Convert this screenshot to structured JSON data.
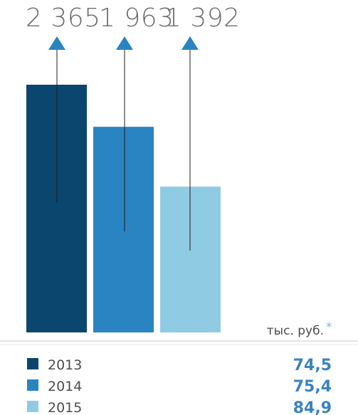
{
  "chart_data": {
    "type": "bar",
    "categories": [
      "2013",
      "2014",
      "2015"
    ],
    "values": [
      2365,
      1963,
      1392
    ],
    "value_labels": [
      "2 365",
      "1 963",
      "1 392"
    ],
    "unit_label": "тыс. руб.",
    "unit_asterisk": "*",
    "colors": [
      "#0b466f",
      "#2a84c1",
      "#90cbe4"
    ],
    "axis_color": "#e3e4e4",
    "legend": [
      {
        "label": "2013",
        "value": "74,5",
        "color": "#0b466f"
      },
      {
        "label": "2014",
        "value": "75,4",
        "color": "#2a84c1"
      },
      {
        "label": "2015",
        "value": "84,9",
        "color": "#90cbe4"
      }
    ],
    "ylim": [
      0,
      3000
    ]
  }
}
